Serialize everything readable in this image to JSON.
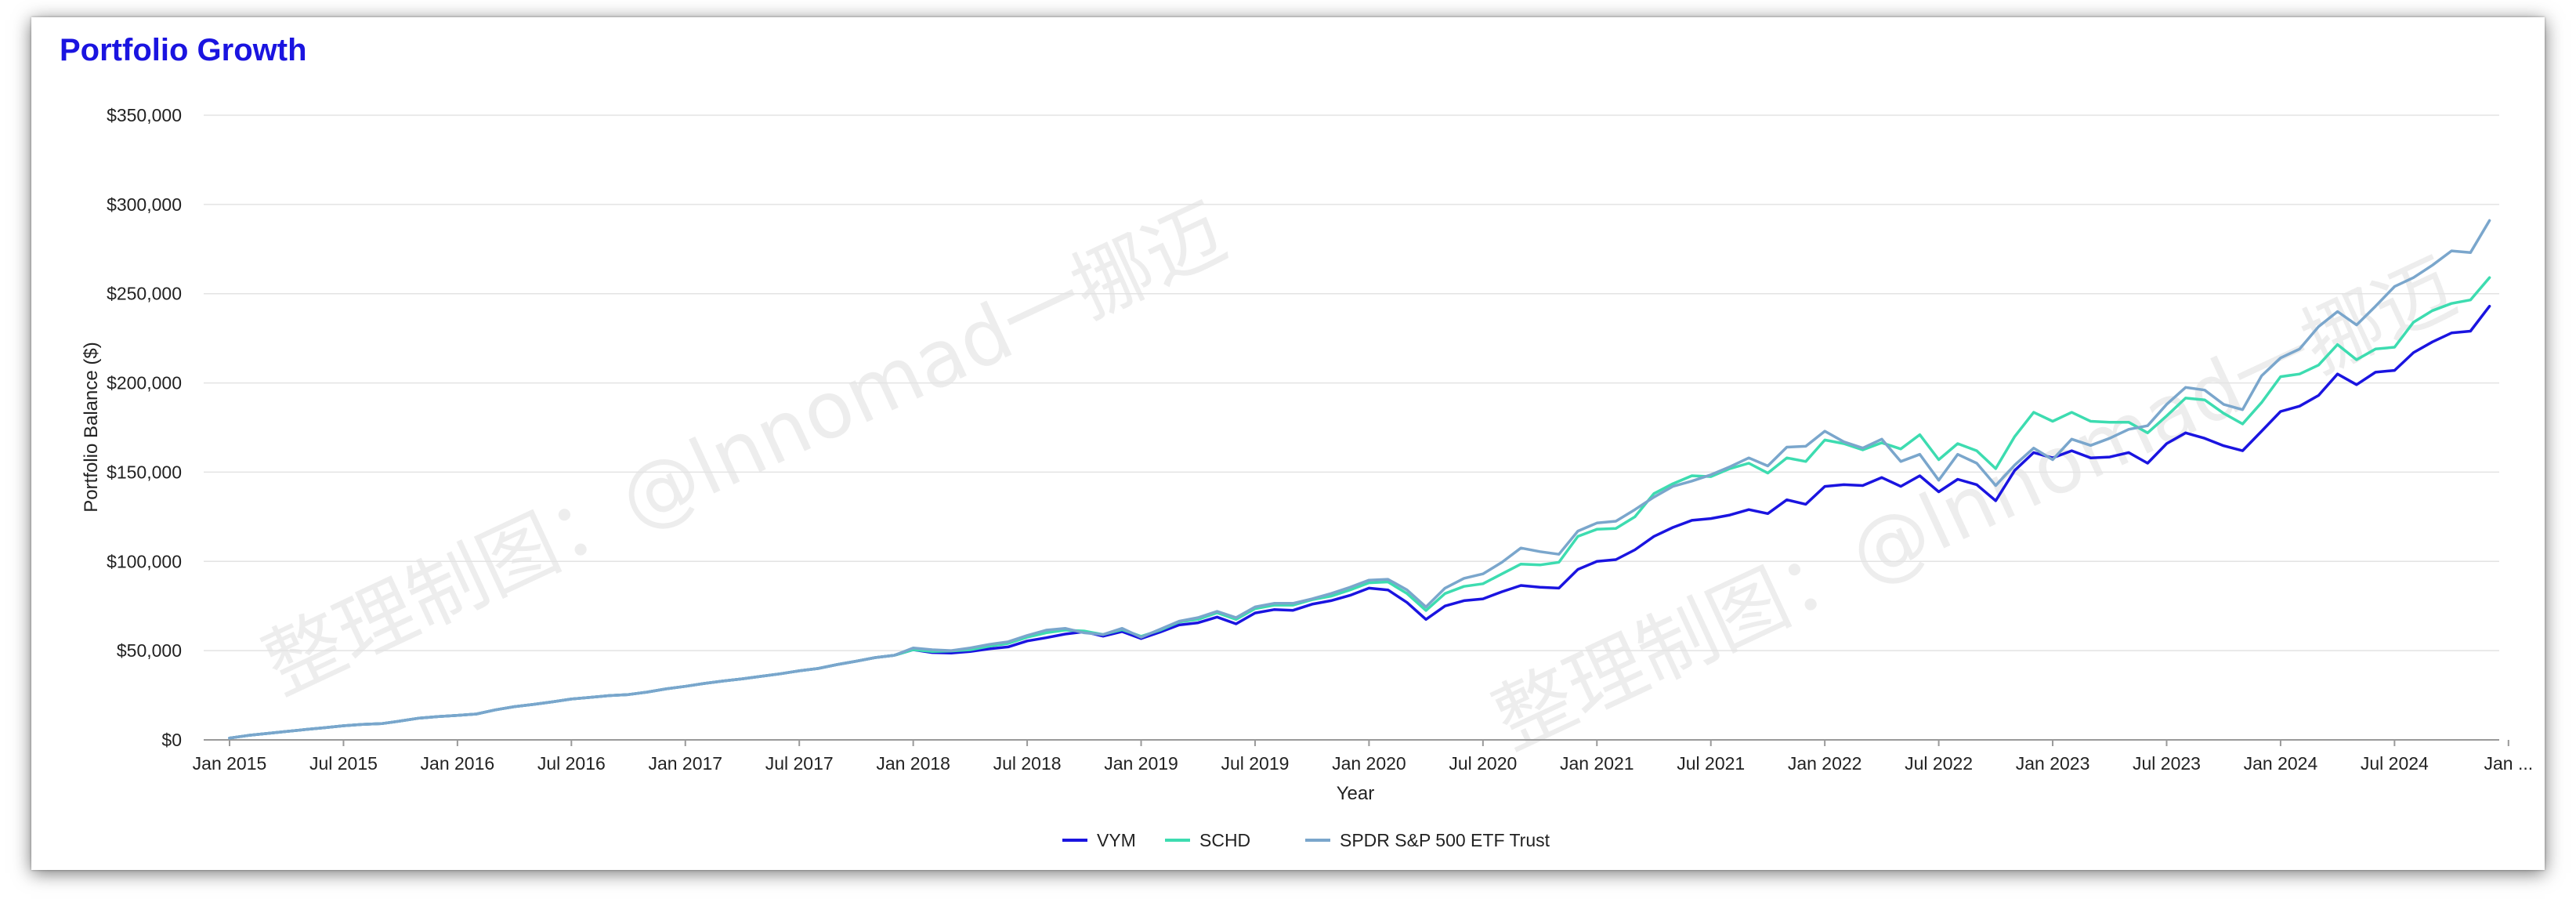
{
  "card": {
    "title": "Portfolio Growth"
  },
  "watermarks": [
    "整理制图：@lnnomad一挪迈",
    "整理制图：@lnnomad一挪迈"
  ],
  "chart_data": {
    "type": "line",
    "title": "Portfolio Growth",
    "xlabel": "Year",
    "ylabel": "Portfolio Balance ($)",
    "ylim": [
      0,
      350000
    ],
    "yticks": [
      {
        "value": 0,
        "label": "$0"
      },
      {
        "value": 50000,
        "label": "$50,000"
      },
      {
        "value": 100000,
        "label": "$100,000"
      },
      {
        "value": 150000,
        "label": "$150,000"
      },
      {
        "value": 200000,
        "label": "$200,000"
      },
      {
        "value": 250000,
        "label": "$250,000"
      },
      {
        "value": 300000,
        "label": "$300,000"
      },
      {
        "value": 350000,
        "label": "$350,000"
      }
    ],
    "xticks": [
      "Jan 2015",
      "Jul 2015",
      "Jan 2016",
      "Jul 2016",
      "Jan 2017",
      "Jul 2017",
      "Jan 2018",
      "Jul 2018",
      "Jan 2019",
      "Jul 2019",
      "Jan 2020",
      "Jul 2020",
      "Jan 2021",
      "Jul 2021",
      "Jan 2022",
      "Jul 2022",
      "Jan 2023",
      "Jul 2023",
      "Jan 2024",
      "Jul 2024",
      "Jan ..."
    ],
    "x_start": "2015-01",
    "grid": true,
    "legend_position": "bottom",
    "series": [
      {
        "name": "VYM",
        "color": "#1a14e0",
        "values": [
          1000,
          2500,
          3600,
          4700,
          5800,
          6800,
          7900,
          8700,
          9100,
          10600,
          12200,
          13100,
          13700,
          14500,
          16800,
          18600,
          19900,
          21300,
          22900,
          23800,
          24800,
          25400,
          26800,
          28600,
          30000,
          31600,
          33000,
          34200,
          35600,
          37000,
          38700,
          40000,
          42200,
          44100,
          46100,
          47400,
          50500,
          48900,
          48600,
          49500,
          51000,
          52100,
          55400,
          57200,
          59300,
          60600,
          58100,
          60700,
          56800,
          60400,
          64400,
          65600,
          68800,
          65000,
          71100,
          73000,
          72600,
          76000,
          78000,
          81000,
          85000,
          84000,
          77000,
          67500,
          75000,
          78000,
          79000,
          83000,
          86500,
          85500,
          85000,
          95500,
          100000,
          101000,
          106500,
          114000,
          119000,
          123000,
          124000,
          126000,
          129000,
          126800,
          134500,
          132000,
          142000,
          143000,
          142500,
          147000,
          142000,
          148000,
          139000,
          146000,
          143000,
          134000,
          151000,
          161000,
          158000,
          162000,
          158000,
          158500,
          161000,
          155000,
          166000,
          172000,
          169000,
          164800,
          162000,
          173000,
          184000,
          187000,
          193000,
          205000,
          199000,
          206000,
          207000,
          217000,
          223000,
          228000,
          229000,
          243000
        ]
      },
      {
        "name": "SCHD",
        "color": "#3ddcb0",
        "values": [
          1000,
          2500,
          3600,
          4700,
          5800,
          6800,
          7900,
          8700,
          9100,
          10600,
          12200,
          13100,
          13700,
          14500,
          16800,
          18600,
          19900,
          21300,
          22900,
          23800,
          24800,
          25400,
          26800,
          28600,
          30000,
          31600,
          33000,
          34200,
          35600,
          37000,
          38700,
          40000,
          42200,
          44100,
          46100,
          47400,
          50500,
          49500,
          49800,
          50500,
          52500,
          54000,
          57500,
          60000,
          61500,
          61000,
          59000,
          61800,
          58000,
          61500,
          66000,
          67500,
          71200,
          67500,
          73500,
          75500,
          75500,
          78500,
          80500,
          84000,
          88000,
          88500,
          82000,
          72500,
          82000,
          86000,
          87500,
          93000,
          98500,
          98000,
          99500,
          114000,
          118000,
          118500,
          125000,
          138000,
          143500,
          148000,
          147500,
          152000,
          155000,
          149500,
          158000,
          156000,
          168000,
          166000,
          162500,
          166500,
          163000,
          171000,
          157000,
          166000,
          162000,
          152000,
          170000,
          183500,
          178500,
          183500,
          178500,
          178000,
          178000,
          172000,
          181500,
          191500,
          190500,
          183000,
          177000,
          189000,
          203500,
          205000,
          210000,
          221500,
          213000,
          219000,
          220000,
          234000,
          240500,
          244500,
          246500,
          259000
        ]
      },
      {
        "name": "SPDR S&P 500 ETF Trust",
        "color": "#7aa6cc",
        "values": [
          1000,
          2500,
          3600,
          4700,
          5800,
          6800,
          7900,
          8700,
          9100,
          10600,
          12200,
          13100,
          13700,
          14500,
          16800,
          18600,
          19900,
          21300,
          22900,
          23800,
          24800,
          25400,
          26800,
          28600,
          30000,
          31600,
          33000,
          34200,
          35600,
          37000,
          38700,
          40000,
          42200,
          44100,
          46100,
          47400,
          51500,
          50500,
          50000,
          51500,
          53500,
          55000,
          58500,
          61500,
          62500,
          60000,
          59000,
          62500,
          57500,
          62000,
          66500,
          68500,
          72000,
          68500,
          74500,
          76500,
          76500,
          79000,
          82000,
          85500,
          89500,
          90000,
          84000,
          74500,
          85000,
          90500,
          93000,
          99500,
          107500,
          105500,
          104000,
          117000,
          121500,
          122500,
          129000,
          136000,
          142000,
          145000,
          148500,
          153000,
          158000,
          153500,
          164000,
          164500,
          173000,
          167000,
          163500,
          168500,
          156000,
          160000,
          145500,
          160000,
          155000,
          142500,
          154000,
          163500,
          157000,
          168500,
          165000,
          169000,
          174000,
          176000,
          188000,
          197500,
          196000,
          188000,
          185000,
          204000,
          214000,
          219000,
          231500,
          240000,
          232500,
          243000,
          254000,
          259000,
          266000,
          274000,
          273000,
          291000
        ]
      }
    ]
  }
}
